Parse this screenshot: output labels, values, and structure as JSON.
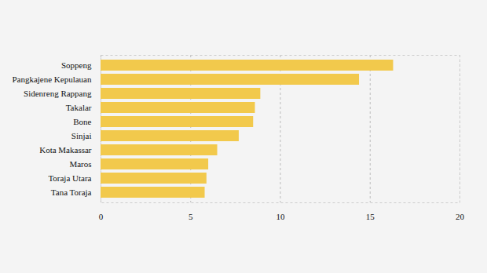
{
  "chart_data": {
    "type": "bar",
    "orientation": "horizontal",
    "categories": [
      "Soppeng",
      "Pangkajene Kepulauan",
      "Sidenreng Rappang",
      "Takalar",
      "Bone",
      "Sinjai",
      "Kota Makassar",
      "Maros",
      "Toraja Utara",
      "Tana Toraja"
    ],
    "values": [
      16.3,
      14.4,
      8.9,
      8.6,
      8.5,
      7.7,
      6.5,
      6.0,
      5.9,
      5.8
    ],
    "color": "#f2c94c",
    "xlim": [
      0,
      20
    ],
    "xticks": [
      0,
      5,
      10,
      15,
      20
    ],
    "grid": true
  }
}
